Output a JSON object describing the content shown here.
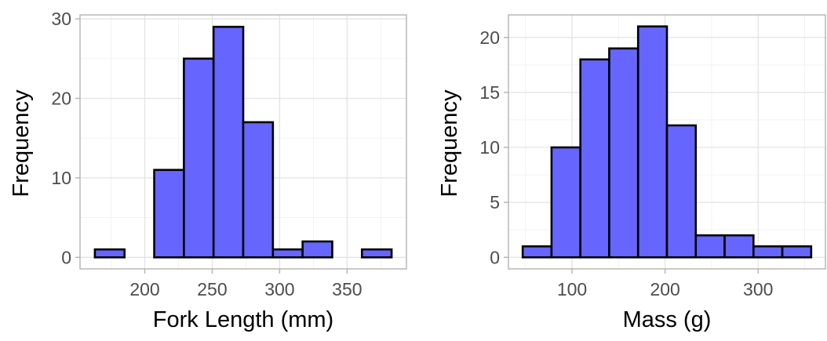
{
  "chart_data": [
    {
      "type": "bar",
      "title": "",
      "xlabel": "Fork Length (mm)",
      "ylabel": "Frequency",
      "bins": [
        {
          "x0": 163,
          "x1": 185,
          "count": 1
        },
        {
          "x0": 185,
          "x1": 207,
          "count": 0
        },
        {
          "x0": 207,
          "x1": 229,
          "count": 11
        },
        {
          "x0": 229,
          "x1": 251,
          "count": 25
        },
        {
          "x0": 251,
          "x1": 273,
          "count": 29
        },
        {
          "x0": 273,
          "x1": 295,
          "count": 17
        },
        {
          "x0": 295,
          "x1": 317,
          "count": 1
        },
        {
          "x0": 317,
          "x1": 339,
          "count": 2
        },
        {
          "x0": 339,
          "x1": 361,
          "count": 0
        },
        {
          "x0": 361,
          "x1": 383,
          "count": 1
        }
      ],
      "xlim": [
        152,
        394
      ],
      "ylim": [
        -1.45,
        30.5
      ],
      "xticks": [
        200,
        250,
        300,
        350
      ],
      "xtick_labels": [
        "200",
        "250",
        "300",
        "350"
      ],
      "yticks": [
        0,
        10,
        20,
        30
      ],
      "ytick_labels": [
        "0",
        "10",
        "20",
        "30"
      ],
      "bar_color": "#6666ff",
      "bar_edge_color": "#000000",
      "grid": true
    },
    {
      "type": "bar",
      "title": "",
      "xlabel": "Mass (g)",
      "ylabel": "Frequency",
      "bins": [
        {
          "x0": 47,
          "x1": 78,
          "count": 1
        },
        {
          "x0": 78,
          "x1": 109,
          "count": 10
        },
        {
          "x0": 109,
          "x1": 140,
          "count": 18
        },
        {
          "x0": 140,
          "x1": 171,
          "count": 19
        },
        {
          "x0": 171,
          "x1": 202,
          "count": 21
        },
        {
          "x0": 202,
          "x1": 233,
          "count": 12
        },
        {
          "x0": 233,
          "x1": 264,
          "count": 2
        },
        {
          "x0": 264,
          "x1": 295,
          "count": 2
        },
        {
          "x0": 295,
          "x1": 326,
          "count": 1
        },
        {
          "x0": 326,
          "x1": 357,
          "count": 1
        }
      ],
      "xlim": [
        31.7,
        372.3
      ],
      "ylim": [
        -1.05,
        22.05
      ],
      "xticks": [
        100,
        200,
        300
      ],
      "xtick_labels": [
        "100",
        "200",
        "300"
      ],
      "yticks": [
        0,
        5,
        10,
        15,
        20
      ],
      "ytick_labels": [
        "0",
        "5",
        "10",
        "15",
        "20"
      ],
      "bar_color": "#6666ff",
      "bar_edge_color": "#000000",
      "grid": true
    }
  ]
}
